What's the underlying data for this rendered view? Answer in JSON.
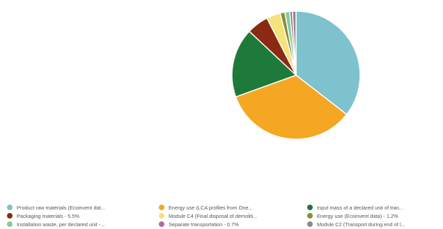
{
  "chart_data": {
    "type": "pie",
    "series": [
      {
        "name": "Product raw materials (Ecoinvent dat...",
        "value": 35.5,
        "color": "#7dc2cc"
      },
      {
        "name": "Energy use (LCA profiles from One...",
        "value": 34.0,
        "color": "#f5a623"
      },
      {
        "name": "Input mass of a declared unit of tran...",
        "value": 17.5,
        "color": "#1e7a3a"
      },
      {
        "name": "Packaging materials - 5.5%",
        "value": 5.5,
        "color": "#8b2a12"
      },
      {
        "name": "Module C4 (Final disposal of demoliti...",
        "value": 3.5,
        "color": "#f6e27a"
      },
      {
        "name": "Energy use (Ecoinvent data) - 1.2%",
        "value": 1.2,
        "color": "#8c8c3c"
      },
      {
        "name": "Installation waste, per declared unit -...",
        "value": 1.2,
        "color": "#7fcf9a"
      },
      {
        "name": "Separate transportation - 0.7%",
        "value": 0.7,
        "color": "#b06aa6"
      },
      {
        "name": "Module C2 (Transport during end of l...",
        "value": 0.9,
        "color": "#8a8a8a"
      }
    ],
    "legend_position": "bottom",
    "title": "",
    "start_angle_deg": 0,
    "direction": "clockwise"
  }
}
